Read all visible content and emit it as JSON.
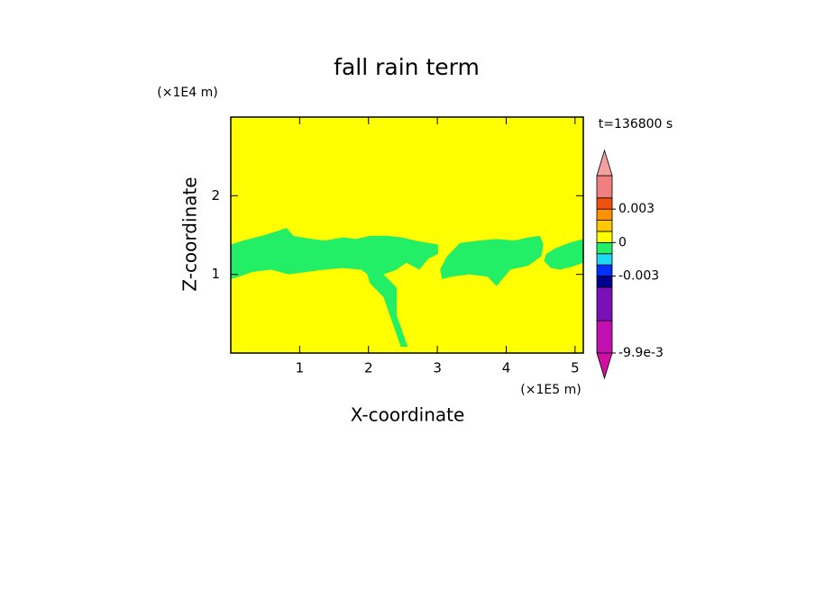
{
  "chart_data": {
    "type": "contour",
    "title": "fall rain term",
    "x_label": "X-coordinate",
    "y_label": "Z-coordinate",
    "x_unit": "(×1E5 m)",
    "y_unit": "(×1E4 m)",
    "time_label": "t=136800 s",
    "xlim": [
      0,
      5.12
    ],
    "ylim": [
      0,
      3
    ],
    "xticks": [
      1,
      2,
      3,
      4,
      5
    ],
    "yticks": [
      1,
      2
    ],
    "field_color": "#ffff00",
    "regions": [
      {
        "color": "#22ee66",
        "x": [
          0,
          0.18,
          0.45,
          0.64,
          0.81,
          0.91,
          1.1,
          1.36,
          1.63,
          1.82,
          2.02,
          2.28,
          2.48,
          2.68,
          2.87,
          3.01,
          3.01,
          2.87,
          2.74,
          2.55,
          2.41,
          2.22,
          2.09,
          1.89,
          1.63,
          1.36,
          1.1,
          0.84,
          0.58,
          0.31,
          0.12,
          0
        ],
        "y": [
          1.38,
          1.43,
          1.49,
          1.54,
          1.59,
          1.49,
          1.46,
          1.43,
          1.47,
          1.45,
          1.49,
          1.49,
          1.47,
          1.43,
          1.4,
          1.38,
          1.26,
          1.2,
          1.06,
          1.15,
          1.06,
          1.0,
          0.94,
          1.06,
          1.08,
          1.06,
          1.03,
          1.0,
          1.06,
          1.03,
          0.97,
          0.94
        ]
      },
      {
        "color": "#22ee66",
        "x": [
          1.96,
          2.15,
          2.41,
          2.41,
          2.57,
          2.47,
          2.31,
          2.22,
          2.02
        ],
        "y": [
          1.06,
          1.06,
          0.83,
          0.48,
          0.08,
          0.08,
          0.48,
          0.71,
          0.89
        ]
      },
      {
        "color": "#22ee66",
        "x": [
          3.04,
          3.14,
          3.33,
          3.6,
          3.86,
          4.12,
          4.32,
          4.49,
          4.54,
          4.51,
          4.32,
          4.06,
          3.86,
          3.73,
          3.46,
          3.2,
          3.07
        ],
        "y": [
          1.06,
          1.23,
          1.4,
          1.43,
          1.45,
          1.43,
          1.47,
          1.49,
          1.38,
          1.23,
          1.11,
          1.06,
          0.85,
          0.97,
          1.0,
          0.97,
          0.94
        ]
      },
      {
        "color": "#22ee66",
        "x": [
          4.55,
          4.58,
          4.71,
          4.91,
          5.12,
          5.12,
          4.97,
          4.78,
          4.65
        ],
        "y": [
          1.17,
          1.26,
          1.33,
          1.4,
          1.45,
          1.15,
          1.1,
          1.06,
          1.08
        ]
      }
    ],
    "colorbar": {
      "clim": [
        -0.0099,
        0.006
      ],
      "levels": [
        -0.0099,
        -0.007,
        -0.004,
        -0.003,
        -0.002,
        -0.001,
        0,
        0.001,
        0.002,
        0.003,
        0.004,
        0.006
      ],
      "colors": [
        "#c010b0",
        "#7a10b8",
        "#000090",
        "#0030ff",
        "#20d8f0",
        "#22ee66",
        "#ffff00",
        "#ffc800",
        "#ff9000",
        "#f05010",
        "#f08080"
      ],
      "extend_colors": [
        "#d010a0",
        "#f4a0a0"
      ],
      "ticks": [
        {
          "value": -0.0099,
          "label": "-9.9e-3"
        },
        -0.003,
        0,
        0.003
      ]
    }
  }
}
